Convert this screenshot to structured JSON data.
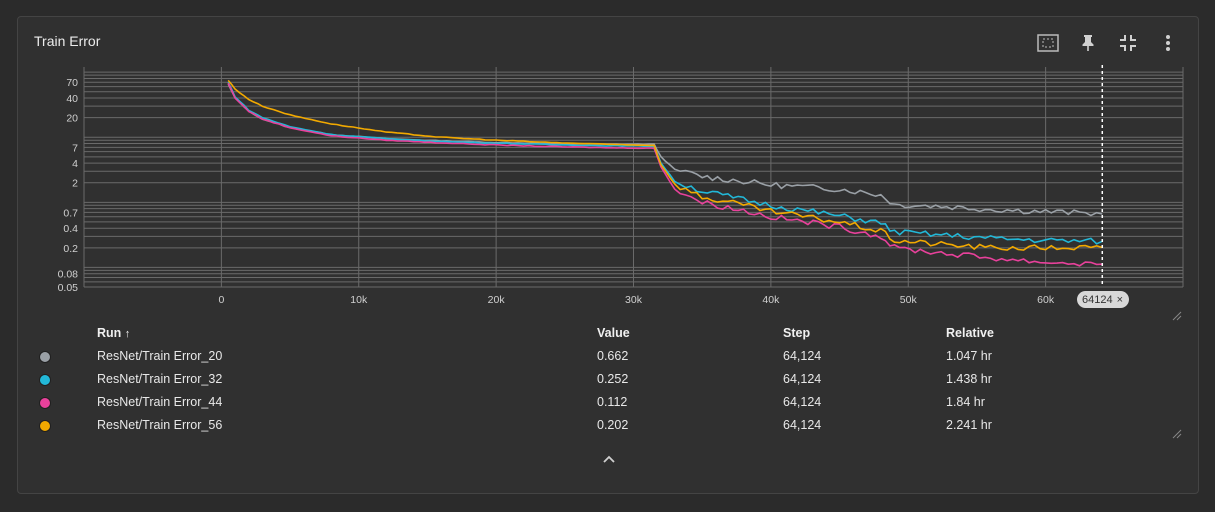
{
  "card": {
    "title": "Train Error"
  },
  "toolbar": {
    "icons": [
      "fit-domain-icon",
      "pin-icon",
      "collapse-icon",
      "more-vert-icon"
    ]
  },
  "chart_data": {
    "type": "line",
    "xlabel": "",
    "ylabel": "",
    "y_scale": "log",
    "xlim": [
      -10000,
      70000
    ],
    "ylim": [
      0.05,
      120
    ],
    "x_ticks": [
      0,
      10000,
      20000,
      30000,
      40000,
      50000,
      60000
    ],
    "x_tick_labels": [
      "0",
      "10k",
      "20k",
      "30k",
      "40k",
      "50k",
      "60k"
    ],
    "y_ticks": [
      0.05,
      0.08,
      0.2,
      0.4,
      0.7,
      2,
      4,
      7,
      20,
      40,
      70
    ],
    "y_tick_labels": [
      "0.05",
      "0.08",
      "0.2",
      "0.4",
      "0.7",
      "2",
      "4",
      "7",
      "20",
      "40",
      "70"
    ],
    "grid": true,
    "cursor_step": 64124,
    "series": [
      {
        "name": "ResNet/Train Error_20",
        "color": "#9aa0a6",
        "x": [
          500,
          1000,
          2000,
          3000,
          5000,
          8000,
          12000,
          16000,
          20000,
          24000,
          28000,
          31500,
          32000,
          33000,
          35000,
          38000,
          40000,
          45000,
          48000,
          49000,
          52000,
          56000,
          60000,
          64124
        ],
        "y": [
          65,
          40,
          25,
          19,
          14,
          11,
          9.5,
          8.8,
          8.3,
          8.0,
          7.8,
          7.8,
          5.0,
          3.2,
          2.5,
          2.1,
          1.85,
          1.6,
          1.3,
          0.92,
          0.88,
          0.78,
          0.72,
          0.662
        ]
      },
      {
        "name": "ResNet/Train Error_32",
        "color": "#22b8d8",
        "x": [
          500,
          1000,
          2000,
          3000,
          5000,
          8000,
          12000,
          16000,
          20000,
          24000,
          28000,
          31500,
          32000,
          33000,
          35000,
          38000,
          40000,
          45000,
          48000,
          49000,
          52000,
          56000,
          60000,
          64124
        ],
        "y": [
          70,
          42,
          26,
          20,
          14.5,
          11,
          9.5,
          8.6,
          8.1,
          7.7,
          7.4,
          7.3,
          4.0,
          2.1,
          1.5,
          1.1,
          0.9,
          0.62,
          0.48,
          0.35,
          0.32,
          0.28,
          0.26,
          0.252
        ]
      },
      {
        "name": "ResNet/Train Error_44",
        "color": "#e8419b",
        "x": [
          500,
          1000,
          2000,
          3000,
          5000,
          8000,
          12000,
          16000,
          20000,
          24000,
          28000,
          31500,
          32000,
          33000,
          35000,
          38000,
          40000,
          45000,
          48000,
          49000,
          52000,
          56000,
          60000,
          64124
        ],
        "y": [
          68,
          40,
          25,
          19,
          14,
          10.5,
          9.0,
          8.2,
          7.6,
          7.2,
          6.9,
          6.8,
          3.5,
          1.6,
          1.0,
          0.75,
          0.6,
          0.42,
          0.3,
          0.2,
          0.17,
          0.14,
          0.12,
          0.112
        ]
      },
      {
        "name": "ResNet/Train Error_56",
        "color": "#f2a900",
        "x": [
          500,
          1000,
          2000,
          3000,
          5000,
          8000,
          12000,
          16000,
          20000,
          24000,
          28000,
          31500,
          32000,
          33000,
          35000,
          38000,
          40000,
          45000,
          48000,
          49000,
          52000,
          56000,
          60000,
          64124
        ],
        "y": [
          75,
          55,
          38,
          30,
          22,
          16,
          12,
          10,
          9.0,
          8.3,
          7.8,
          7.5,
          3.8,
          1.9,
          1.2,
          0.9,
          0.72,
          0.5,
          0.36,
          0.26,
          0.23,
          0.2,
          0.2,
          0.202
        ]
      }
    ]
  },
  "table": {
    "headers": {
      "run": "Run",
      "sort_arrow": "↑",
      "value": "Value",
      "step": "Step",
      "relative": "Relative"
    },
    "rows": [
      {
        "color": "#9aa0a6",
        "run": "ResNet/Train Error_20",
        "value": "0.662",
        "step": "64,124",
        "relative": "1.047 hr"
      },
      {
        "color": "#22b8d8",
        "run": "ResNet/Train Error_32",
        "value": "0.252",
        "step": "64,124",
        "relative": "1.438 hr"
      },
      {
        "color": "#e8419b",
        "run": "ResNet/Train Error_44",
        "value": "0.112",
        "step": "64,124",
        "relative": "1.84 hr"
      },
      {
        "color": "#f2a900",
        "run": "ResNet/Train Error_56",
        "value": "0.202",
        "step": "64,124",
        "relative": "2.241 hr"
      }
    ]
  },
  "step_chip": {
    "label": "64124",
    "close": "×"
  }
}
